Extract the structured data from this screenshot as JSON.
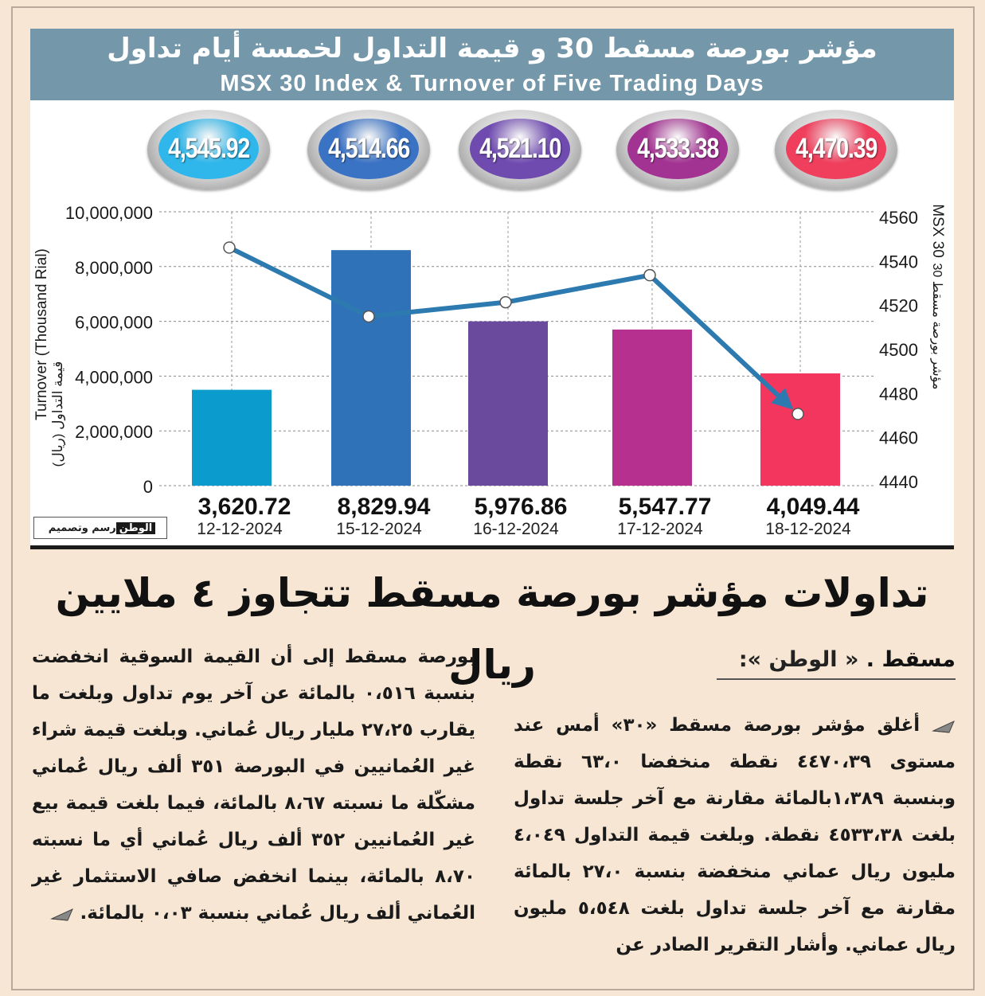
{
  "header": {
    "title_ar": "مؤشر بورصة مسقط 30 و قيمة التداول لخمسة أيام تداول",
    "title_en": "MSX 30 Index & Turnover of Five Trading Days"
  },
  "credit": {
    "brand": "الوطن",
    "label": "رسم وتصميم"
  },
  "chart_data": {
    "type": "bar",
    "categories": [
      "12-12-2024",
      "15-12-2024",
      "16-12-2024",
      "17-12-2024",
      "18-12-2024"
    ],
    "series": [
      {
        "name": "Turnover (Thousand Rial)",
        "kind": "bar",
        "values": [
          3620.72,
          8829.94,
          5976.86,
          5547.77,
          4049.44
        ],
        "bar_heights": [
          3500000,
          8600000,
          6000000,
          5700000,
          4100000
        ],
        "value_labels": [
          "3,620.72",
          "8,829.94",
          "5,976.86",
          "5,547.77",
          "4,049.44"
        ],
        "colors": [
          "#0b9bcc",
          "#2f72b7",
          "#6a4a9c",
          "#b6318f",
          "#f3365e"
        ]
      },
      {
        "name": "MSX 30",
        "kind": "line",
        "axis": "right",
        "values": [
          4545.92,
          4514.66,
          4521.1,
          4533.38,
          4470.39
        ],
        "value_labels": [
          "4,545.92",
          "4,514.66",
          "4,521.10",
          "4,533.38",
          "4,470.39"
        ],
        "color": "#2c7ab0"
      }
    ],
    "y_left": {
      "label": "Turnover (Thousand Rial)",
      "label_ar": "قيمة التداول (ريال)",
      "ticks": [
        "0",
        "2,000,000",
        "4,000,000",
        "6,000,000",
        "8,000,000",
        "10,000,000"
      ],
      "ylim": [
        0,
        10000000
      ]
    },
    "y_right": {
      "label": "MSX 30",
      "label_ar": "مؤشر بورصة مسقط 30",
      "ticks": [
        "4440",
        "4460",
        "4480",
        "4500",
        "4520",
        "4540",
        "4560"
      ],
      "ylim": [
        4440,
        4560
      ]
    },
    "grid": "dashed",
    "bubble_colors": [
      "#2fb6ea",
      "#3a72c4",
      "#6f4bb0",
      "#a33392",
      "#ef3f5d"
    ]
  },
  "article": {
    "headline": "تداولات مؤشر بورصة مسقط تتجاوز ٤ ملايين ريال",
    "dateline_city": "مسقط .",
    "dateline_brand": "« الوطن »:",
    "col_right": "أغلق مؤشر بورصة مسقط «٣٠» أمس عند مستوى ٤٤٧٠،٣٩ نقطة منخفضا ٦٣،٠ نقطة وبنسبة ١،٣٨٩بالمائة مقارنة مع آخر جلسة تداول بلغت ٤٥٣٣،٣٨ نقطة. وبلغت قيمة التداول ٤،٠٤٩ مليون ريال عماني منخفضة بنسبة ٢٧،٠ بالمائة مقارنة مع آخر جلسة تداول بلغت ٥،٥٤٨ مليون ريال عماني. وأشار التقرير الصادر عن",
    "col_left": "بورصة مسقط إلى أن القيمة السوقية انخفضت بنسبة ٠،٥١٦ بالمائة عن آخر يوم تداول وبلغت ما يقارب ٢٧،٢٥ مليار ريال عُماني. وبلغت قيمة شراء غير العُمانيين في البورصة ٣٥١ ألف ريال عُماني مشكّلة ما نسبته ٨،٦٧ بالمائة، فيما بلغت قيمة بيع غير العُمانيين ٣٥٢ ألف ريال عُماني أي ما نسبته ٨،٧٠ بالمائة، بينما انخفض صافي الاستثمار غير العُماني ألف ريال عُماني بنسبة ٠،٠٣ بالمائة."
  }
}
